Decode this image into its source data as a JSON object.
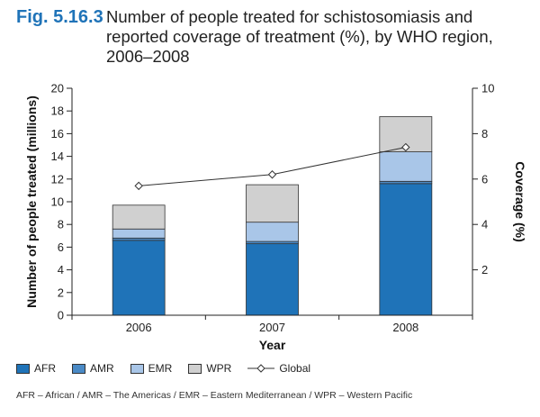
{
  "figure": {
    "number": "Fig. 5.16.3",
    "title_line1": "Number of people treated for schistosomiasis and",
    "title_line2": "reported coverage of treatment (%), by WHO region,",
    "title_line3": "2006–2008"
  },
  "chart_data": {
    "type": "bar",
    "stacked": true,
    "categories": [
      "2006",
      "2007",
      "2008"
    ],
    "series": [
      {
        "name": "AFR",
        "values": [
          6.6,
          6.3,
          11.6
        ],
        "color": "#1f73b8"
      },
      {
        "name": "AMR",
        "values": [
          0.2,
          0.2,
          0.2
        ],
        "color": "#4a8ac6"
      },
      {
        "name": "EMR",
        "values": [
          0.8,
          1.7,
          2.6
        ],
        "color": "#a9c6e8"
      },
      {
        "name": "WPR",
        "values": [
          2.1,
          3.3,
          3.1
        ],
        "color": "#d0d0d0"
      }
    ],
    "line_series": {
      "name": "Global",
      "axis": "right",
      "values": [
        5.7,
        6.2,
        7.4
      ]
    },
    "xlabel": "Year",
    "ylabel": "Number of people treated (millions)",
    "ylim": [
      0,
      20
    ],
    "yticks": [
      "0",
      "2",
      "4",
      "6",
      "8",
      "10",
      "12",
      "14",
      "16",
      "18",
      "20"
    ],
    "y2label": "Coverage (%)",
    "y2lim": [
      0,
      10
    ],
    "y2ticks": [
      "2",
      "4",
      "6",
      "8",
      "10"
    ],
    "legend_position": "bottom-left"
  },
  "footnote": "AFR – African / AMR – The Americas / EMR – Eastern Mediterranean / WPR – Western Pacific"
}
